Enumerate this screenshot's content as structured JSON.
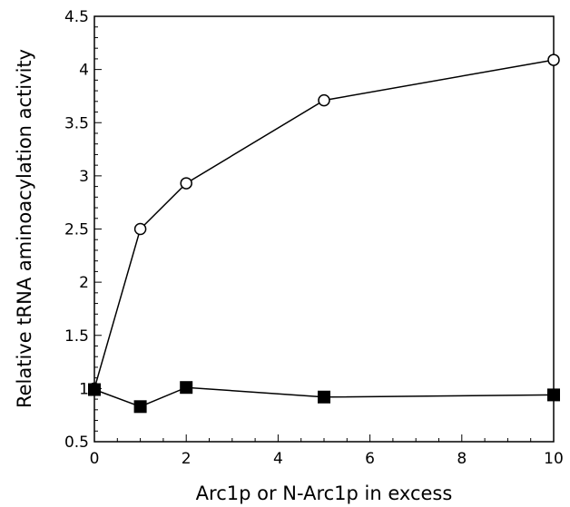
{
  "chart_data": {
    "type": "line",
    "xlabel": "Arc1p or N-Arc1p in excess",
    "ylabel": "Relative tRNA aminoacylation activity",
    "xlim": [
      0,
      10
    ],
    "ylim": [
      0.5,
      4.5
    ],
    "x_ticks": [
      "0",
      "2",
      "4",
      "6",
      "8",
      "10"
    ],
    "y_ticks": [
      "0.5",
      "1",
      "1.5",
      "2",
      "2.5",
      "3",
      "3.5",
      "4",
      "4.5"
    ],
    "grid": false,
    "series": [
      {
        "marker": "open-circle",
        "color": "#000000",
        "points": [
          [
            0,
            1.0
          ],
          [
            1,
            2.5
          ],
          [
            2,
            2.93
          ],
          [
            5,
            3.71
          ],
          [
            10,
            4.09
          ]
        ]
      },
      {
        "marker": "filled-square",
        "color": "#000000",
        "points": [
          [
            0,
            0.99
          ],
          [
            1,
            0.83
          ],
          [
            2,
            1.01
          ],
          [
            5,
            0.92
          ],
          [
            10,
            0.94
          ]
        ]
      }
    ]
  }
}
